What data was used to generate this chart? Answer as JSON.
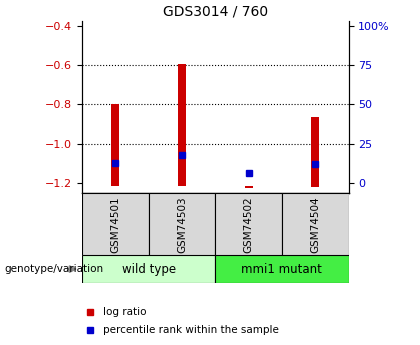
{
  "title": "GDS3014 / 760",
  "samples": [
    "GSM74501",
    "GSM74503",
    "GSM74502",
    "GSM74504"
  ],
  "log_ratio_tops": [
    -0.8,
    -0.595,
    -1.215,
    -0.865
  ],
  "log_ratio_bottoms": [
    -1.215,
    -1.215,
    -1.225,
    -1.22
  ],
  "percentile_values": [
    -1.095,
    -1.055,
    -1.15,
    -1.1
  ],
  "left_ylim": [
    -1.25,
    -0.375
  ],
  "left_yticks": [
    -1.2,
    -1.0,
    -0.8,
    -0.6,
    -0.4
  ],
  "right_yticks_pct": [
    0,
    25,
    50,
    75,
    100
  ],
  "bar_color": "#cc0000",
  "dot_color": "#0000cc",
  "groups": [
    {
      "label": "wild type",
      "indices": [
        0,
        1
      ],
      "color": "#ccffcc"
    },
    {
      "label": "mmi1 mutant",
      "indices": [
        2,
        3
      ],
      "color": "#44ee44"
    }
  ],
  "group_annotation": "genotype/variation",
  "legend_items": [
    {
      "label": "log ratio",
      "color": "#cc0000"
    },
    {
      "label": "percentile rank within the sample",
      "color": "#0000cc"
    }
  ],
  "grid_yticks": [
    -1.0,
    -0.8,
    -0.6
  ],
  "bar_width": 0.12,
  "title_fontsize": 10,
  "tick_label_fontsize": 8
}
